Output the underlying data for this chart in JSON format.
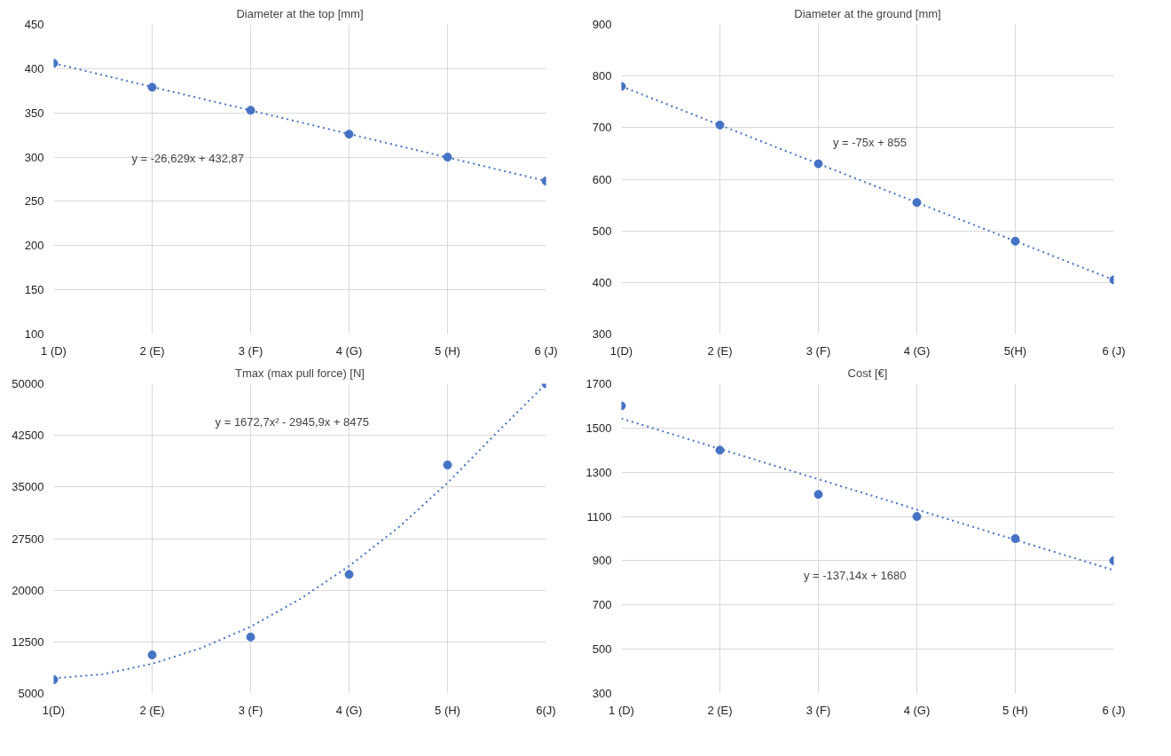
{
  "chart_data": [
    {
      "type": "scatter",
      "title": "Diameter at the top [mm]",
      "x": [
        1,
        2,
        3,
        4,
        5,
        6
      ],
      "xlim": [
        1,
        6
      ],
      "xticks": [
        {
          "value": 1,
          "label": "1 (D)"
        },
        {
          "value": 2,
          "label": "2 (E)"
        },
        {
          "value": 3,
          "label": "3 (F)"
        },
        {
          "value": 4,
          "label": "4 (G)"
        },
        {
          "value": 5,
          "label": "5 (H)"
        },
        {
          "value": 6,
          "label": "6 (J)"
        }
      ],
      "ylim": [
        100,
        450
      ],
      "yticks": [
        100,
        150,
        200,
        250,
        300,
        350,
        400,
        450
      ],
      "grid": true,
      "series": [
        {
          "color": "#4472c4",
          "marker": "circle",
          "values": [
            406,
            379,
            353,
            326,
            300,
            273
          ]
        },
        {
          "type": "line",
          "color": "#4472c4",
          "line_style": "dotted",
          "x": [
            1,
            6
          ],
          "values": [
            406,
            273
          ]
        }
      ],
      "annotations": [
        "y = -26,629x + 432,87"
      ]
    },
    {
      "type": "scatter",
      "title": "Diameter at the ground [mm]",
      "x": [
        1,
        2,
        3,
        4,
        5,
        6
      ],
      "xlim": [
        1,
        6
      ],
      "xticks": [
        {
          "value": 1,
          "label": "1(D)"
        },
        {
          "value": 2,
          "label": "2 (E)"
        },
        {
          "value": 3,
          "label": "3 (F)"
        },
        {
          "value": 4,
          "label": "4 (G)"
        },
        {
          "value": 5,
          "label": "5(H)"
        },
        {
          "value": 6,
          "label": "6 (J)"
        }
      ],
      "ylim": [
        300,
        900
      ],
      "yticks": [
        300,
        400,
        500,
        600,
        700,
        800,
        900
      ],
      "grid": true,
      "series": [
        {
          "color": "#4472c4",
          "marker": "circle",
          "values": [
            780,
            705,
            630,
            555,
            480,
            405
          ]
        },
        {
          "type": "line",
          "color": "#4472c4",
          "line_style": "dotted",
          "x": [
            1,
            6
          ],
          "values": [
            780,
            405
          ]
        }
      ],
      "annotations": [
        "y = -75x + 855"
      ]
    },
    {
      "type": "scatter",
      "title": "Tmax (max pull force) [N]",
      "x": [
        1,
        2,
        3,
        4,
        5,
        6
      ],
      "xlim": [
        1,
        6
      ],
      "xticks": [
        {
          "value": 1,
          "label": "1(D)"
        },
        {
          "value": 2,
          "label": "2 (E)"
        },
        {
          "value": 3,
          "label": "3 (F)"
        },
        {
          "value": 4,
          "label": "4 (G)"
        },
        {
          "value": 5,
          "label": "5 (H)"
        },
        {
          "value": 6,
          "label": "6(J)"
        }
      ],
      "ylim": [
        5000,
        50000
      ],
      "yticks": [
        5000,
        12500,
        20000,
        27500,
        35000,
        42500,
        50000
      ],
      "grid": true,
      "series": [
        {
          "color": "#4472c4",
          "marker": "circle",
          "values": [
            7000,
            10600,
            13200,
            22300,
            38200,
            50000
          ]
        },
        {
          "type": "line",
          "color": "#4472c4",
          "line_style": "dotted",
          "x": [
            1,
            1.5,
            2,
            2.5,
            3,
            3.5,
            4,
            4.5,
            5,
            5.5,
            6
          ],
          "values": [
            7200,
            7800,
            9300,
            11600,
            14700,
            18700,
            23500,
            29100,
            35600,
            42900,
            50000
          ]
        }
      ],
      "annotations": [
        "y = 1672,7x² - 2945,9x + 8475"
      ]
    },
    {
      "type": "scatter",
      "title": "Cost [€]",
      "x": [
        1,
        2,
        3,
        4,
        5,
        6
      ],
      "xlim": [
        1,
        6
      ],
      "xticks": [
        {
          "value": 1,
          "label": "1 (D)"
        },
        {
          "value": 2,
          "label": "2 (E)"
        },
        {
          "value": 3,
          "label": "3 (F)"
        },
        {
          "value": 4,
          "label": "4 (G)"
        },
        {
          "value": 5,
          "label": "5 (H)"
        },
        {
          "value": 6,
          "label": "6 (J)"
        }
      ],
      "ylim": [
        300,
        1700
      ],
      "yticks": [
        300,
        500,
        700,
        900,
        1100,
        1300,
        1500,
        1700
      ],
      "grid": true,
      "series": [
        {
          "color": "#4472c4",
          "marker": "circle",
          "values": [
            1600,
            1400,
            1200,
            1100,
            1000,
            900
          ]
        },
        {
          "type": "line",
          "color": "#4472c4",
          "line_style": "dotted",
          "x": [
            1,
            6
          ],
          "values": [
            1543,
            857
          ]
        }
      ],
      "annotations": [
        "y = -137,14x + 1680"
      ]
    }
  ]
}
